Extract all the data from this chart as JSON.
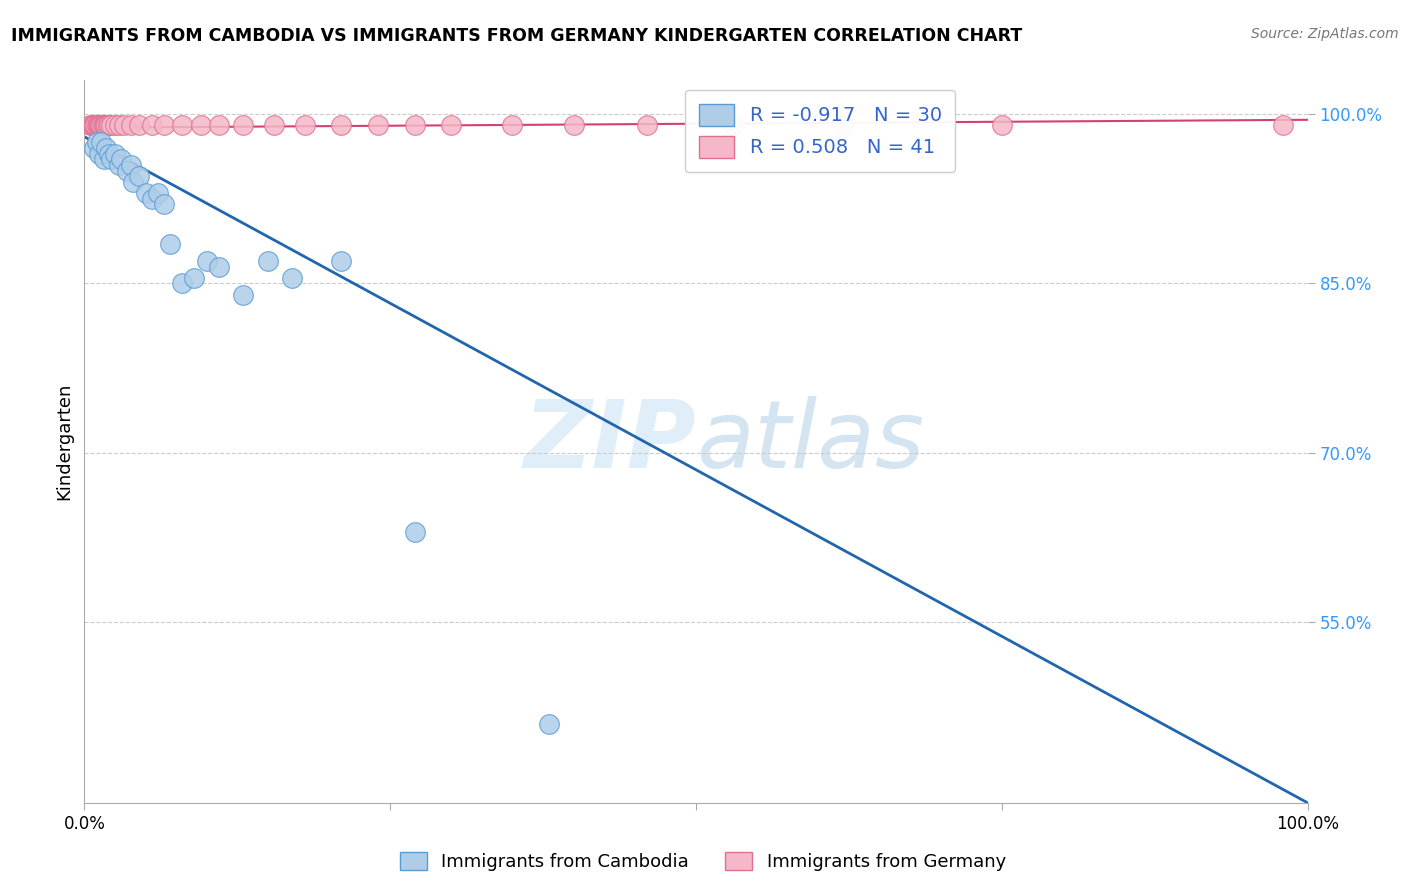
{
  "title": "IMMIGRANTS FROM CAMBODIA VS IMMIGRANTS FROM GERMANY KINDERGARTEN CORRELATION CHART",
  "source": "Source: ZipAtlas.com",
  "ylabel": "Kindergarten",
  "legend_R1": "-0.917",
  "legend_N1": "30",
  "legend_R2": "0.508",
  "legend_N2": "41",
  "blue_color": "#aecde8",
  "blue_edge_color": "#5b9bd5",
  "blue_line_color": "#2166ac",
  "pink_color": "#f4b8c8",
  "pink_edge_color": "#e07090",
  "pink_line_color": "#d44070",
  "watermark_zip": "ZIP",
  "watermark_atlas": "atlas",
  "background_color": "#ffffff",
  "grid_color": "#cccccc",
  "tick_color": "#3399ff",
  "x_range": [
    0.0,
    1.0
  ],
  "y_range": [
    0.39,
    1.03
  ],
  "y_ticks": [
    0.55,
    0.7,
    0.85,
    1.0
  ],
  "y_tick_labels": [
    "55.0%",
    "70.0%",
    "85.0%",
    "100.0%"
  ],
  "blue_scatter_x": [
    0.008,
    0.01,
    0.012,
    0.014,
    0.016,
    0.018,
    0.02,
    0.022,
    0.025,
    0.028,
    0.03,
    0.035,
    0.038,
    0.04,
    0.045,
    0.05,
    0.055,
    0.06,
    0.065,
    0.07,
    0.08,
    0.09,
    0.1,
    0.11,
    0.13,
    0.15,
    0.17,
    0.21,
    0.27,
    0.38
  ],
  "blue_scatter_y": [
    0.97,
    0.975,
    0.965,
    0.975,
    0.96,
    0.97,
    0.965,
    0.96,
    0.965,
    0.955,
    0.96,
    0.95,
    0.955,
    0.94,
    0.945,
    0.93,
    0.925,
    0.93,
    0.92,
    0.885,
    0.85,
    0.855,
    0.87,
    0.865,
    0.84,
    0.87,
    0.855,
    0.87,
    0.63,
    0.46
  ],
  "pink_scatter_x": [
    0.005,
    0.006,
    0.007,
    0.008,
    0.009,
    0.01,
    0.011,
    0.012,
    0.013,
    0.014,
    0.015,
    0.016,
    0.017,
    0.018,
    0.019,
    0.02,
    0.022,
    0.025,
    0.028,
    0.032,
    0.038,
    0.045,
    0.055,
    0.065,
    0.08,
    0.095,
    0.11,
    0.13,
    0.155,
    0.18,
    0.21,
    0.24,
    0.27,
    0.3,
    0.35,
    0.4,
    0.46,
    0.53,
    0.62,
    0.75,
    0.98
  ],
  "pink_scatter_y": [
    0.99,
    0.99,
    0.99,
    0.99,
    0.99,
    0.99,
    0.99,
    0.99,
    0.99,
    0.99,
    0.99,
    0.99,
    0.99,
    0.99,
    0.99,
    0.99,
    0.99,
    0.99,
    0.99,
    0.99,
    0.99,
    0.99,
    0.99,
    0.99,
    0.99,
    0.99,
    0.99,
    0.99,
    0.99,
    0.99,
    0.99,
    0.99,
    0.99,
    0.99,
    0.99,
    0.99,
    0.99,
    0.99,
    0.99,
    0.99,
    0.99
  ],
  "blue_line_x": [
    0.0,
    1.0
  ],
  "blue_line_y": [
    0.98,
    0.39
  ],
  "pink_line_x": [
    0.0,
    1.0
  ],
  "pink_line_y": [
    0.988,
    0.995
  ]
}
